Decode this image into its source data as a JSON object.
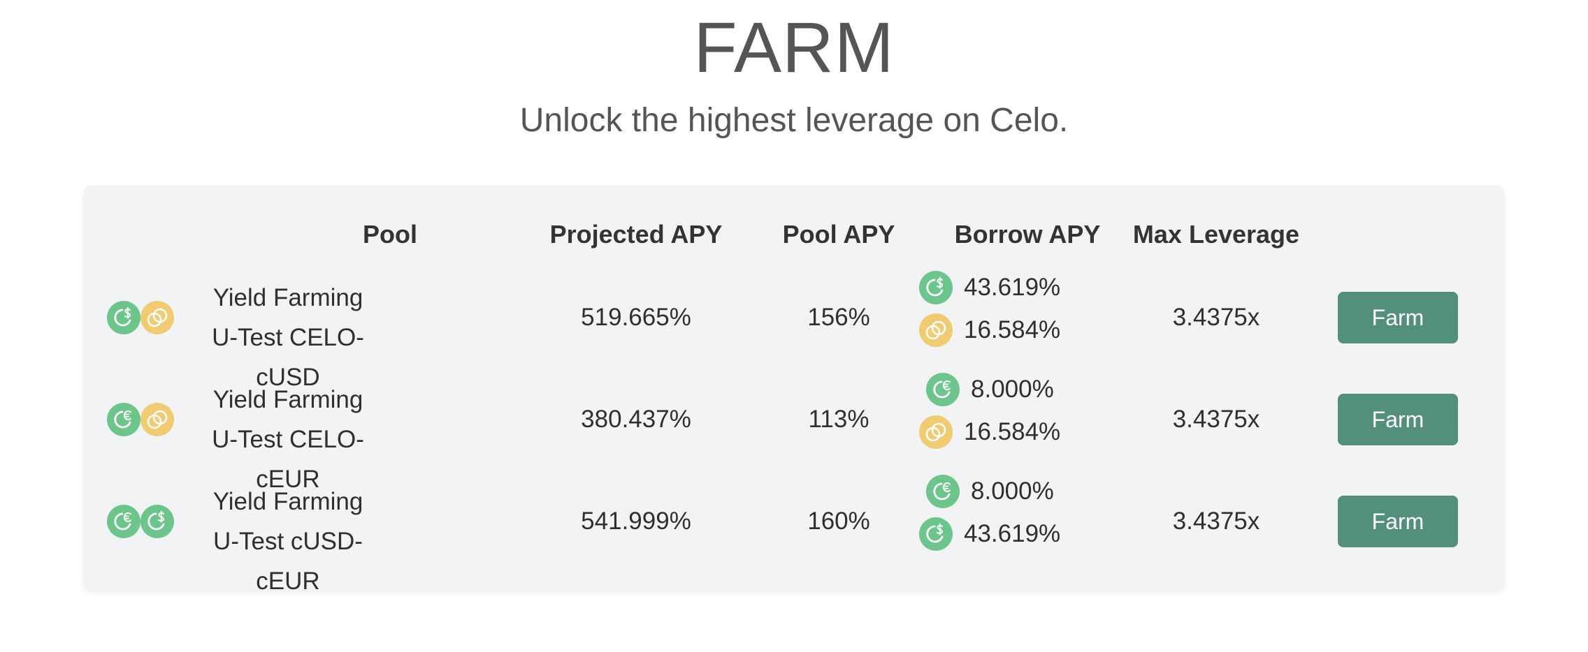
{
  "page": {
    "title": "FARM",
    "subtitle": "Unlock the highest leverage on Celo."
  },
  "table": {
    "headers": {
      "pool": "Pool",
      "projected_apy": "Projected APY",
      "pool_apy": "Pool APY",
      "borrow_apy": "Borrow APY",
      "max_leverage": "Max Leverage"
    },
    "rows": [
      {
        "pool_line1": "Yield Farming",
        "pool_line2": "U-Test CELO-cUSD",
        "tokens": [
          "cusd-icon",
          "celo-icon"
        ],
        "projected_apy": "519.665%",
        "pool_apy": "156%",
        "borrow": [
          {
            "token": "cusd-icon",
            "apy": "43.619%"
          },
          {
            "token": "celo-icon",
            "apy": "16.584%"
          }
        ],
        "max_leverage": "3.4375x",
        "button_label": "Farm"
      },
      {
        "pool_line1": "Yield Farming",
        "pool_line2": "U-Test CELO-cEUR",
        "tokens": [
          "ceur-icon",
          "celo-icon"
        ],
        "projected_apy": "380.437%",
        "pool_apy": "113%",
        "borrow": [
          {
            "token": "ceur-icon",
            "apy": "8.000%"
          },
          {
            "token": "celo-icon",
            "apy": "16.584%"
          }
        ],
        "max_leverage": "3.4375x",
        "button_label": "Farm"
      },
      {
        "pool_line1": "Yield Farming",
        "pool_line2": "U-Test cUSD-cEUR",
        "tokens": [
          "ceur-icon",
          "cusd-icon"
        ],
        "projected_apy": "541.999%",
        "pool_apy": "160%",
        "borrow": [
          {
            "token": "ceur-icon",
            "apy": "8.000%"
          },
          {
            "token": "cusd-icon",
            "apy": "43.619%"
          }
        ],
        "max_leverage": "3.4375x",
        "button_label": "Farm"
      }
    ]
  },
  "colors": {
    "stable_token": "#6cc58a",
    "celo_token": "#f0cb70",
    "button": "#53907a",
    "card_bg": "#f1f3f4",
    "text": "#2f2f2f",
    "heading": "#555555"
  }
}
